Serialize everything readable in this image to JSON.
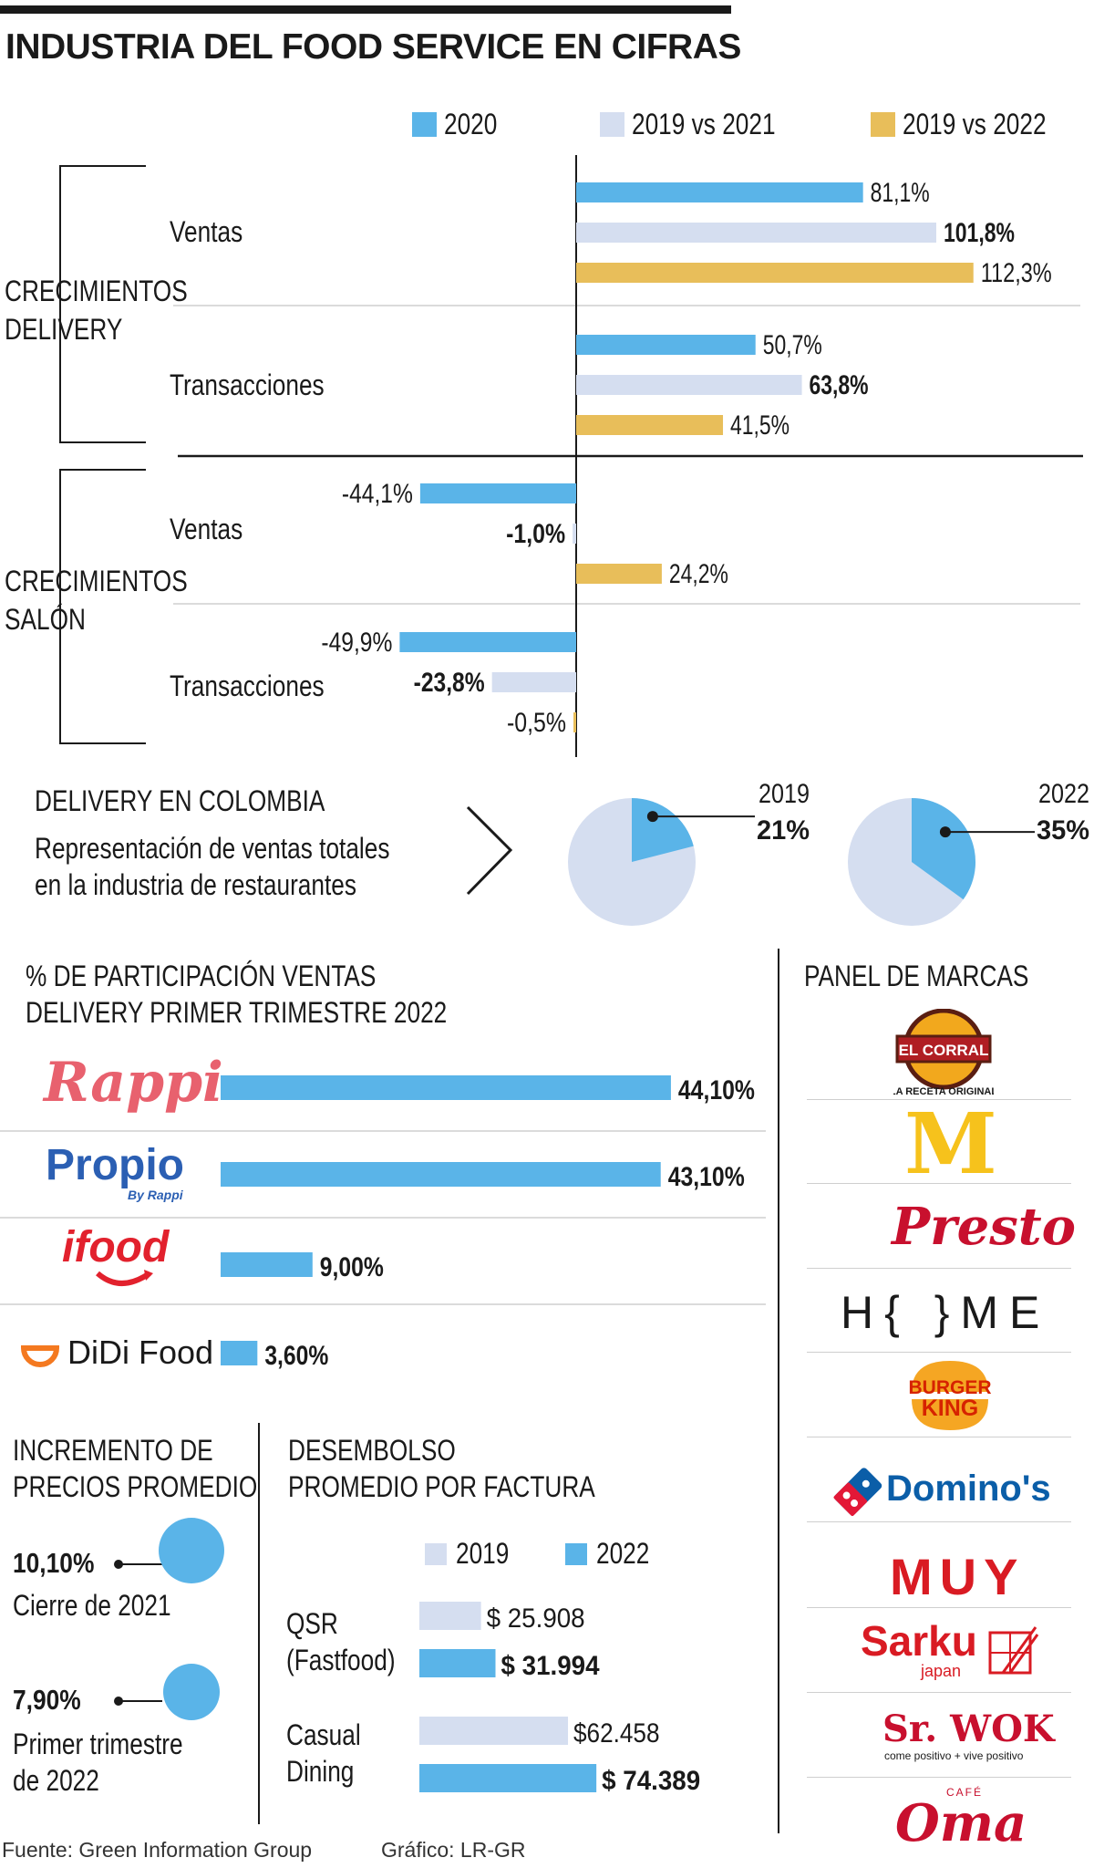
{
  "title": "INDUSTRIA DEL FOOD SERVICE EN CIFRAS",
  "legend": [
    {
      "name": "2020",
      "color": "#5ab4e8"
    },
    {
      "name": "2019 vs 2021",
      "color": "#d5def0"
    },
    {
      "name": "2019 vs 2022",
      "color": "#e8be5a"
    }
  ],
  "groups": {
    "delivery": "CRECIMIENTOS DELIVERY",
    "salon": "CRECIMIENTOS SALÓN",
    "ventas": "Ventas",
    "transacciones": "Transacciones"
  },
  "chart_data": [
    {
      "type": "bar",
      "orientation": "horizontal",
      "categories": [
        "Delivery - Ventas",
        "Delivery - Transacciones",
        "Salón - Ventas",
        "Salón - Transacciones"
      ],
      "series": [
        {
          "name": "2020",
          "values": [
            81.1,
            50.7,
            -44.1,
            -49.9
          ],
          "labels": [
            "81,1%",
            "50,7%",
            "-44,1%",
            "-49,9%"
          ]
        },
        {
          "name": "2019 vs 2021",
          "values": [
            101.8,
            63.8,
            -1.0,
            -23.8
          ],
          "labels": [
            "101,8%",
            "63,8%",
            "-1,0%",
            "-23,8%"
          ]
        },
        {
          "name": "2019 vs 2022",
          "values": [
            112.3,
            41.5,
            24.2,
            -0.5
          ],
          "labels": [
            "112,3%",
            "41,5%",
            "24,2%",
            "-0,5%"
          ]
        }
      ],
      "colors": [
        "#5ab4e8",
        "#d5def0",
        "#e8be5a"
      ]
    },
    {
      "type": "pie",
      "title": "2019",
      "label": "21%",
      "values": [
        21,
        79
      ],
      "colors": [
        "#5ab4e8",
        "#d5def0"
      ]
    },
    {
      "type": "pie",
      "title": "2022",
      "label": "35%",
      "values": [
        35,
        65
      ],
      "colors": [
        "#5ab4e8",
        "#d5def0"
      ]
    },
    {
      "type": "bar",
      "orientation": "horizontal",
      "title": "% DE PARTICIPACIÓN VENTAS DELIVERY PRIMER TRIMESTRE 2022",
      "categories": [
        "Rappi",
        "Propio",
        "ifood",
        "DiDi Food"
      ],
      "values": [
        44.1,
        43.1,
        9.0,
        3.6
      ],
      "labels": [
        "44,10%",
        "43,10%",
        "9,00%",
        "3,60%"
      ],
      "color": "#5ab4e8"
    },
    {
      "type": "bar",
      "orientation": "horizontal",
      "title": "DESEMBOLSO PROMEDIO POR FACTURA",
      "categories": [
        "QSR (Fastfood)",
        "Casual Dining"
      ],
      "series": [
        {
          "name": "2019",
          "values": [
            25908,
            62458
          ],
          "labels": [
            "$ 25.908",
            "$62.458"
          ]
        },
        {
          "name": "2022",
          "values": [
            31994,
            74389
          ],
          "labels": [
            "$ 31.994",
            "$ 74.389"
          ]
        }
      ],
      "colors": [
        "#d5def0",
        "#5ab4e8"
      ]
    }
  ],
  "delivery_colombia": {
    "heading": "DELIVERY EN COLOMBIA",
    "desc1": "Representación de ventas totales",
    "desc2": "en la industria de restaurantes"
  },
  "share": {
    "heading1": "% DE PARTICIPACIÓN VENTAS",
    "heading2": "DELIVERY PRIMER TRIMESTRE 2022",
    "brands": [
      "Rappi",
      "Propio",
      "ifood",
      "DiDi Food"
    ],
    "propio_sub": "By Rappi"
  },
  "prices": {
    "heading1": "INCREMENTO DE",
    "heading2": "PRECIOS PROMEDIO",
    "items": [
      {
        "value": "10,10%",
        "label1": "Cierre de 2021",
        "label2": ""
      },
      {
        "value": "7,90%",
        "label1": "Primer trimestre",
        "label2": "de 2022"
      }
    ]
  },
  "ticket": {
    "heading1": "DESEMBOLSO",
    "heading2": "PROMEDIO POR FACTURA",
    "legend": [
      "2019",
      "2022"
    ],
    "qsr1": "QSR",
    "qsr2": "(Fastfood)",
    "casual1": "Casual",
    "casual2": "Dining"
  },
  "panel": {
    "heading": "PANEL DE MARCAS",
    "brands": [
      "EL CORRAL",
      "LA RECETA ORIGINAL",
      "M",
      "Presto",
      "H{ }ME",
      "BURGER",
      "KING",
      "Domino's",
      "MUY",
      "Sarku",
      "japan",
      "Sr. WOK",
      "come positivo + vive positivo",
      "CAFÉ",
      "Oma"
    ]
  },
  "footer": {
    "source": "Fuente: Green Information Group",
    "graphic": "Gráfico: LR-GR"
  }
}
